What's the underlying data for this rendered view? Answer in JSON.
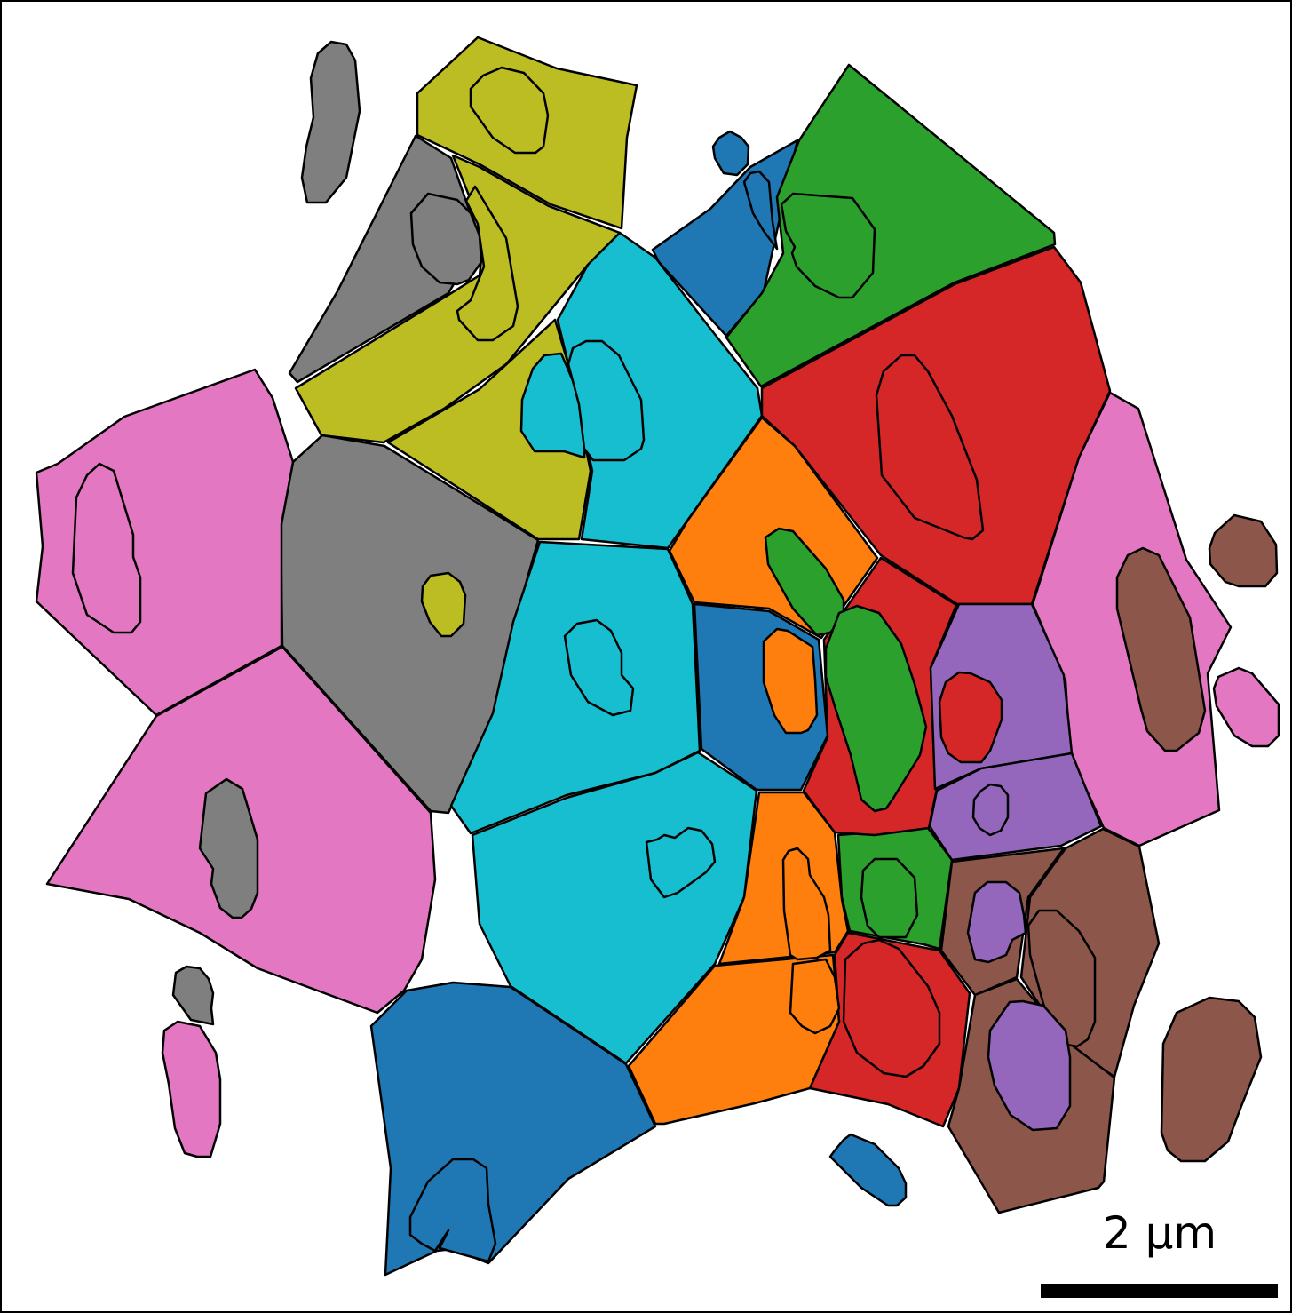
{
  "scale_bar": {
    "label": "2 µm"
  },
  "palette": {
    "olive": "#bcbd22",
    "gray": "#7f7f7f",
    "pink": "#e377c2",
    "cyan": "#17becf",
    "blue": "#1f77b4",
    "green": "#2ca02c",
    "red": "#d62728",
    "orange": "#ff7f0e",
    "purple": "#9467bd",
    "brown": "#8c564b"
  }
}
